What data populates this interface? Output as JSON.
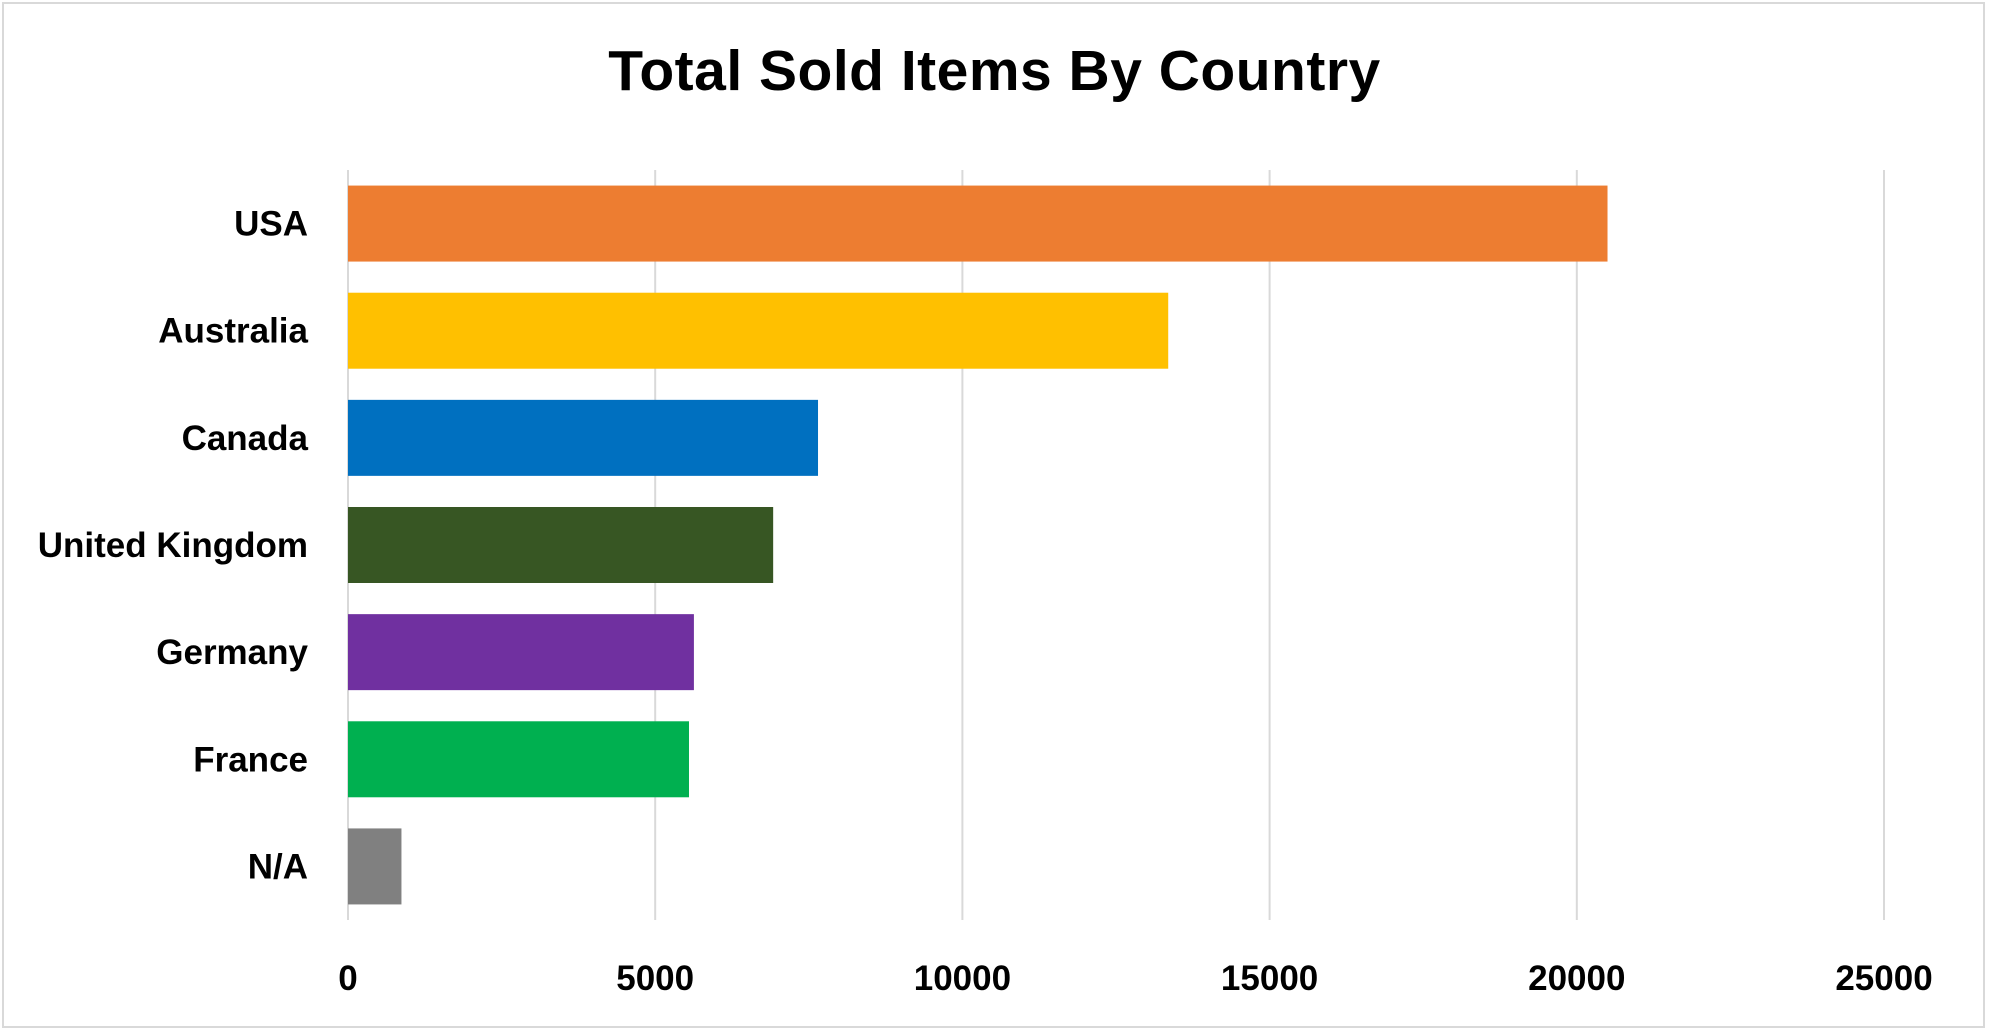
{
  "chart_data": {
    "type": "bar",
    "orientation": "horizontal",
    "title": "Total Sold Items By Country",
    "xlabel": "",
    "ylabel": "",
    "categories": [
      "USA",
      "Australia",
      "Canada",
      "United Kingdom",
      "Germany",
      "France",
      "N/A"
    ],
    "values": [
      20500,
      13350,
      7650,
      6920,
      5630,
      5550,
      870
    ],
    "colors": [
      "#ED7D31",
      "#FFC000",
      "#0070C0",
      "#375623",
      "#7030A0",
      "#00B050",
      "#808080"
    ],
    "xlim": [
      0,
      25000
    ],
    "ticks": [
      "0",
      "5000",
      "10000",
      "15000",
      "20000",
      "25000"
    ],
    "tick_values": [
      0,
      5000,
      10000,
      15000,
      20000,
      25000
    ],
    "grid": "vertical",
    "legend": "none"
  }
}
